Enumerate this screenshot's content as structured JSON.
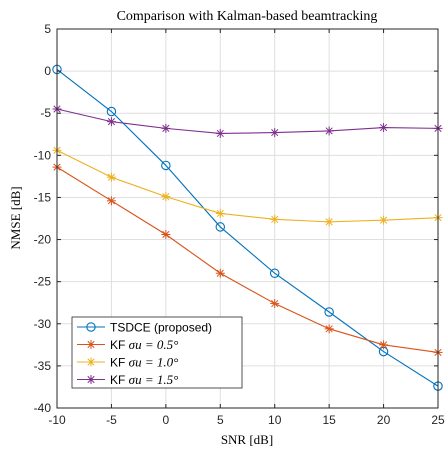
{
  "chart_data": {
    "type": "line",
    "title": "Comparison with Kalman-based beamtracking",
    "xlabel": "SNR [dB]",
    "ylabel": "NMSE [dB]",
    "xlim": [
      -10,
      25
    ],
    "ylim": [
      -40,
      5
    ],
    "xticks": [
      "-10",
      "-5",
      "0",
      "5",
      "10",
      "15",
      "20",
      "25"
    ],
    "yticks": [
      "5",
      "0",
      "-5",
      "-10",
      "-15",
      "-20",
      "-25",
      "-30",
      "-35",
      "-40"
    ],
    "grid": true,
    "legend_position": "bottom-left",
    "x": [
      -10,
      -5,
      0,
      5,
      10,
      15,
      20,
      25
    ],
    "series": [
      {
        "name": "TSDCE (proposed)",
        "name_prefix": "TSDCE (proposed)",
        "name_math": "",
        "marker": "circle",
        "color": "#0072BD",
        "values": [
          0.2,
          -4.8,
          -11.2,
          -18.5,
          -24.0,
          -28.6,
          -33.3,
          -37.4
        ]
      },
      {
        "name": "KF σu = 0.5°",
        "name_prefix": "KF ",
        "name_math": "σu = 0.5°",
        "marker": "star",
        "color": "#D95319",
        "values": [
          -11.4,
          -15.4,
          -19.4,
          -24.0,
          -27.6,
          -30.6,
          -32.5,
          -33.4
        ]
      },
      {
        "name": "KF σu = 1.0°",
        "name_prefix": "KF ",
        "name_math": "σu = 1.0°",
        "marker": "star",
        "color": "#EDB120",
        "values": [
          -9.4,
          -12.6,
          -14.9,
          -16.9,
          -17.6,
          -17.9,
          -17.7,
          -17.4
        ]
      },
      {
        "name": "KF σu = 1.5°",
        "name_prefix": "KF ",
        "name_math": "σu = 1.5°",
        "marker": "star",
        "color": "#7E2F8E",
        "values": [
          -4.5,
          -6.0,
          -6.8,
          -7.4,
          -7.3,
          -7.1,
          -6.7,
          -6.8
        ]
      }
    ]
  }
}
